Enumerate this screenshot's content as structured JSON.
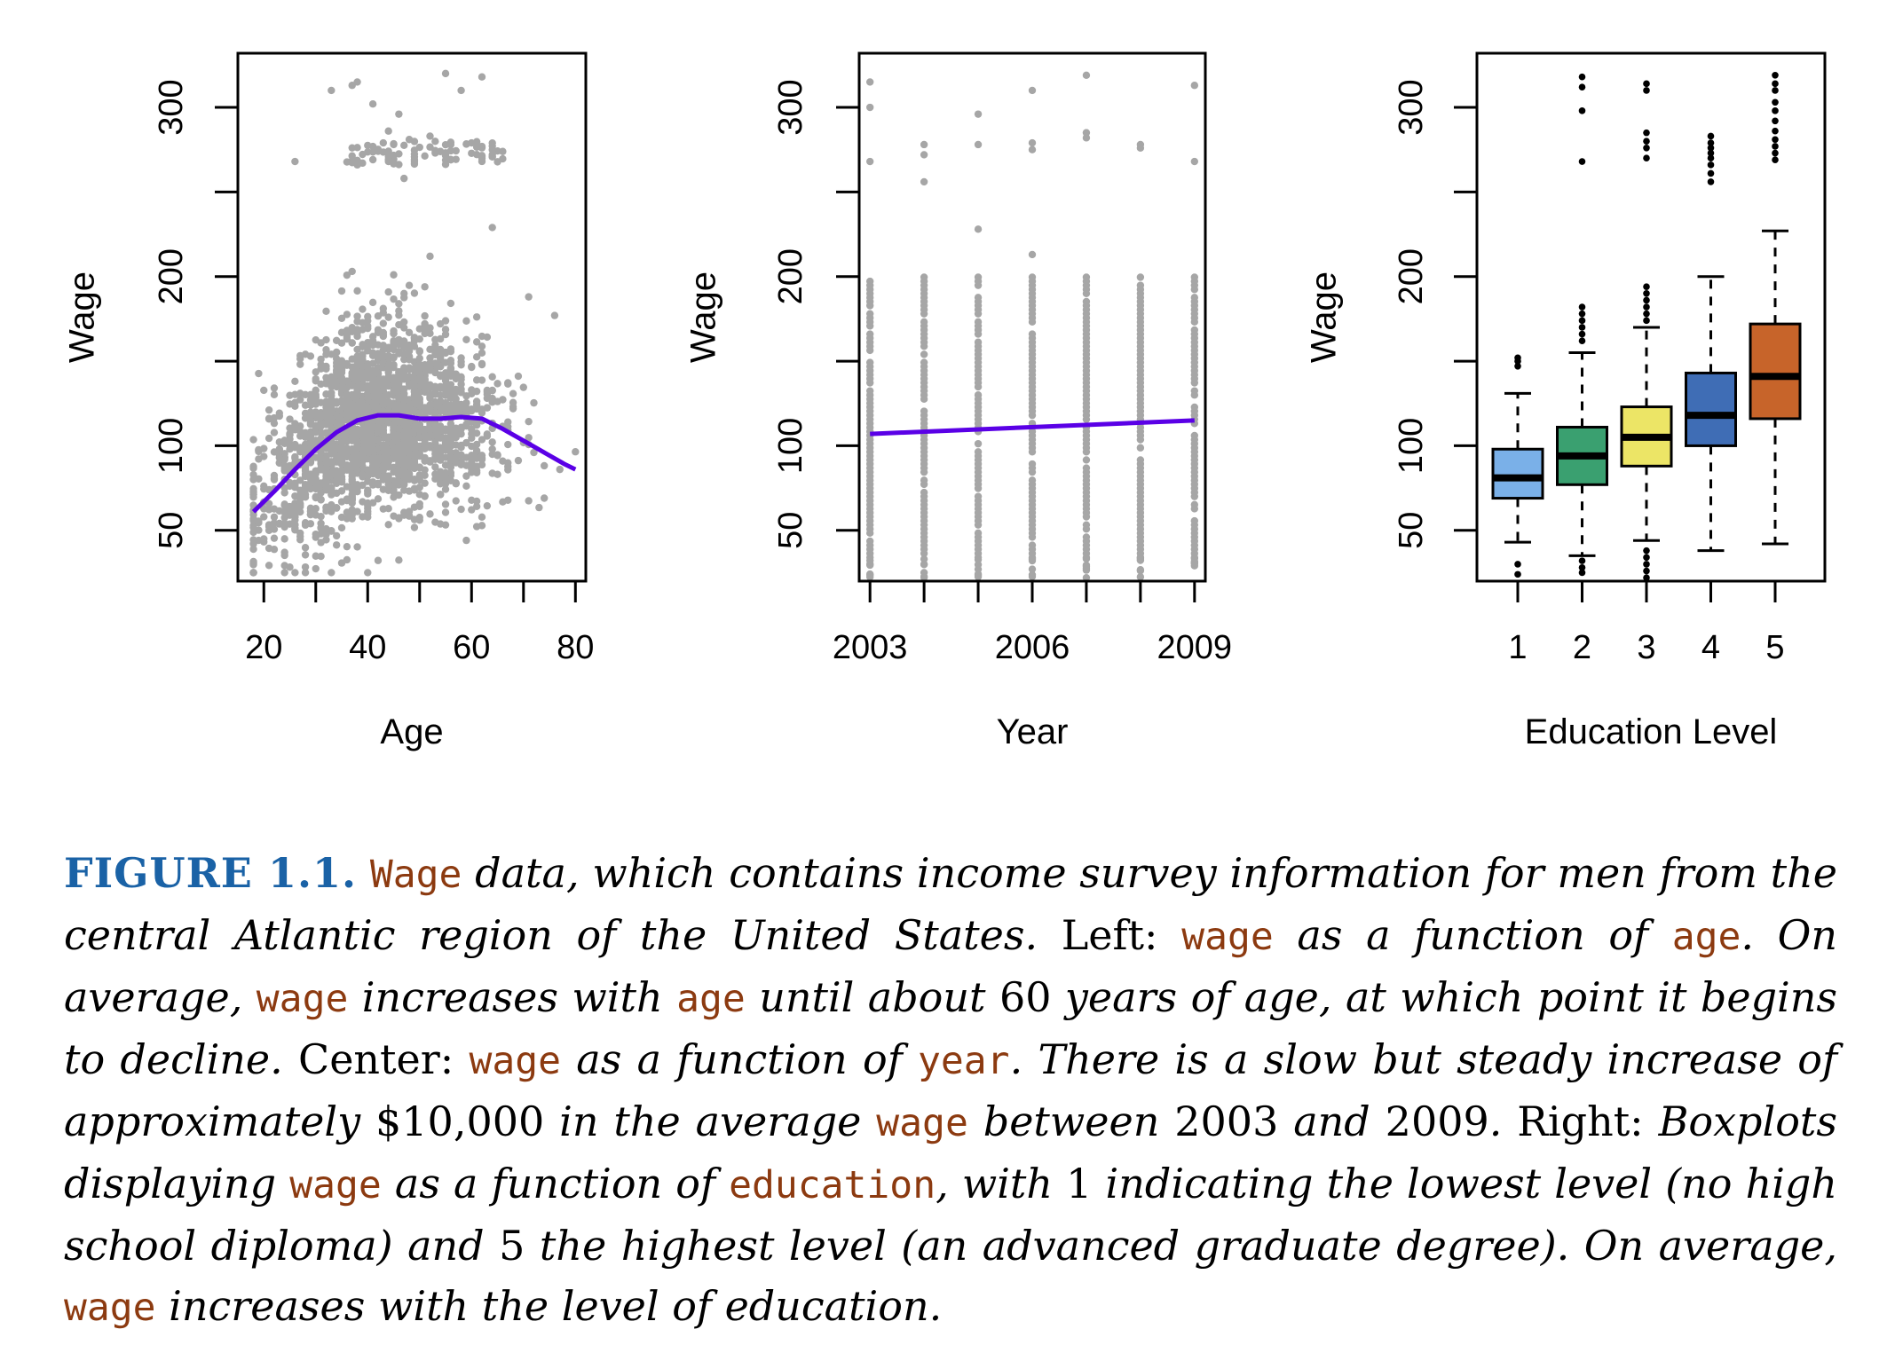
{
  "chart_data": [
    {
      "type": "scatter",
      "xlabel": "Age",
      "ylabel": "Wage",
      "xlim": [
        15,
        82
      ],
      "ylim": [
        20,
        332
      ],
      "xticks": [
        20,
        40,
        60,
        80
      ],
      "xticks_minor": [
        30,
        50,
        70
      ],
      "yticks": [
        50,
        100,
        200,
        300
      ],
      "yticks_minor": [
        150,
        250
      ],
      "point_color": "#a6a6a6",
      "curve_color": "#5a00e6",
      "smooth_curve": {
        "x": [
          18,
          22,
          26,
          30,
          34,
          38,
          42,
          46,
          50,
          54,
          58,
          62,
          66,
          70,
          74,
          78,
          80
        ],
        "y": [
          61,
          73,
          86,
          98,
          108,
          115,
          118,
          118,
          116,
          116,
          117,
          116,
          110,
          103,
          96,
          89,
          86
        ]
      },
      "points_note": "3000 survey observations; dense band 50–160, sparse group 255–320"
    },
    {
      "type": "scatter",
      "xlabel": "Year",
      "ylabel": "Wage",
      "xlim": [
        2002.8,
        2009.2
      ],
      "ylim": [
        20,
        332
      ],
      "xticks": [
        2003,
        2006,
        2009
      ],
      "xticks_minor": [
        2004,
        2005,
        2007,
        2008
      ],
      "yticks": [
        50,
        100,
        200,
        300
      ],
      "yticks_minor": [
        150,
        250
      ],
      "point_color": "#a6a6a6",
      "line_color": "#5a00e6",
      "linear_fit": {
        "x": [
          2003,
          2009
        ],
        "y": [
          107,
          115
        ]
      },
      "outliers": [
        {
          "year": 2003,
          "values": [
            315,
            300,
            268
          ]
        },
        {
          "year": 2004,
          "values": [
            278,
            272,
            256
          ]
        },
        {
          "year": 2005,
          "values": [
            296,
            278,
            228
          ]
        },
        {
          "year": 2006,
          "values": [
            310,
            279,
            275,
            213
          ]
        },
        {
          "year": 2007,
          "values": [
            319,
            285,
            282
          ]
        },
        {
          "year": 2008,
          "values": [
            278,
            276
          ]
        },
        {
          "year": 2009,
          "values": [
            313,
            268
          ]
        }
      ]
    },
    {
      "type": "box",
      "xlabel": "Education Level",
      "ylabel": "Wage",
      "ylim": [
        20,
        332
      ],
      "categories": [
        "1",
        "2",
        "3",
        "4",
        "5"
      ],
      "yticks": [
        50,
        100,
        200,
        300
      ],
      "yticks_minor": [
        150,
        250
      ],
      "boxes": [
        {
          "category": "1",
          "color": "#7ab0e8",
          "whisker_low": 43,
          "q1": 69,
          "median": 81,
          "q3": 98,
          "whisker_high": 131,
          "outliers_high": [
            152,
            150,
            147
          ],
          "outliers_low": [
            30,
            24
          ]
        },
        {
          "category": "2",
          "color": "#3aa070",
          "whisker_low": 35,
          "q1": 77,
          "median": 94,
          "q3": 111,
          "whisker_high": 155,
          "outliers_high": [
            318,
            312,
            298,
            268,
            182,
            178,
            174,
            170,
            166,
            162
          ],
          "outliers_low": [
            32,
            28,
            25
          ]
        },
        {
          "category": "3",
          "color": "#ece566",
          "whisker_low": 44,
          "q1": 88,
          "median": 105,
          "q3": 123,
          "whisker_high": 170,
          "outliers_high": [
            314,
            310,
            285,
            280,
            276,
            270,
            194,
            190,
            186,
            182,
            178,
            174
          ],
          "outliers_low": [
            38,
            34,
            30,
            26,
            22
          ]
        },
        {
          "category": "4",
          "color": "#3f6db5",
          "whisker_low": 38,
          "q1": 100,
          "median": 118,
          "q3": 143,
          "whisker_high": 200,
          "outliers_high": [
            283,
            279,
            276,
            273,
            270,
            266,
            261,
            256
          ]
        },
        {
          "category": "5",
          "color": "#c7642a",
          "whisker_low": 42,
          "q1": 116,
          "median": 141,
          "q3": 172,
          "whisker_high": 227,
          "outliers_high": [
            319,
            314,
            310,
            303,
            298,
            292,
            286,
            281,
            277,
            273,
            269
          ]
        }
      ]
    }
  ],
  "caption": {
    "label": "FIGURE 1.1.",
    "s1_code": "Wage",
    "s1": " data, which contains income survey information for men from the central Atlantic region of the United States. ",
    "left_word": "Left:",
    "s2_code1": "wage",
    "s2a": " as a function of ",
    "s2_code2": "age",
    "s2b": ". On average, ",
    "s2_code3": "wage",
    "s2c": " increases with ",
    "s2_code4": "age",
    "s2d": " until about ",
    "n60": "60",
    "s2e": " years of age, at which point it begins to decline. ",
    "center_word": "Center:",
    "s3_code1": "wage",
    "s3a": " as a function of ",
    "s3_code2": "year",
    "s3b": ". There is a slow but steady increase of approximately ",
    "amount": "$10,000",
    "s3c": " in the average ",
    "s3_code3": "wage",
    "s3d": " between ",
    "y2003": "2003",
    "s3e": " and ",
    "y2009": "2009",
    "s3f": ". ",
    "right_word": "Right:",
    "s4a": " Boxplots displaying ",
    "s4_code1": "wage",
    "s4b": " as a function of ",
    "s4_code2": "education",
    "s4c": ", with ",
    "n1": "1",
    "s4d": " indicating the lowest level (no high school diploma) and ",
    "n5": "5",
    "s4e": " the highest level (an advanced graduate degree). On average, ",
    "s4_code3": "wage",
    "s4f": " increases with the level of education."
  }
}
